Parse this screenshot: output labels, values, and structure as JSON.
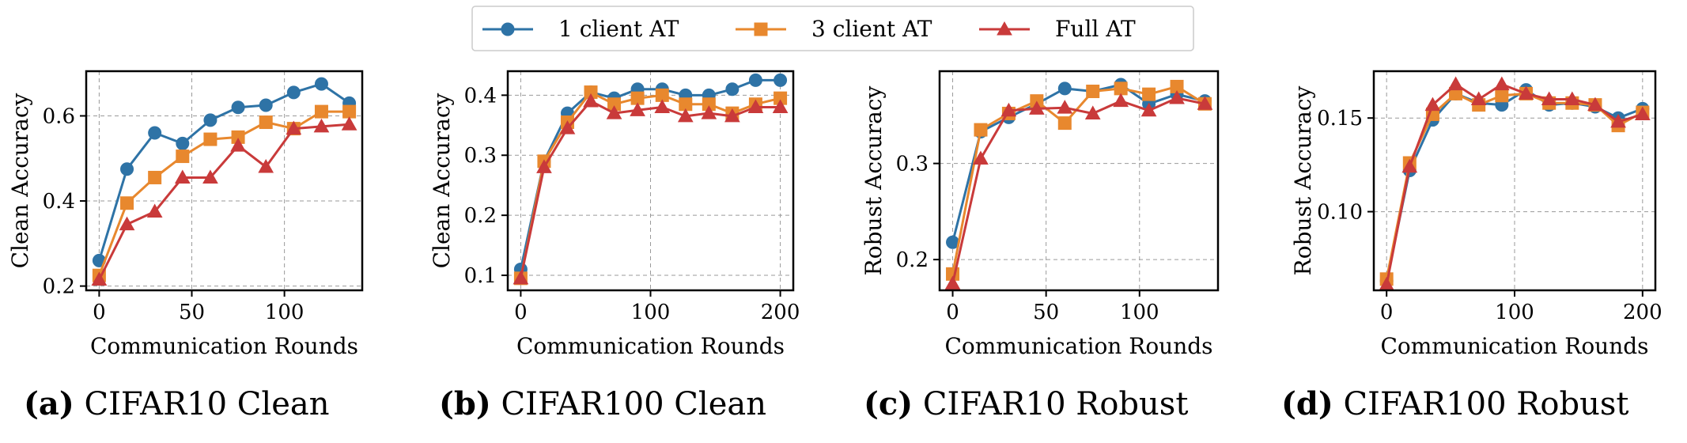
{
  "legend": [
    {
      "label": "1 client AT",
      "color": "#2E73A6",
      "marker": "circle"
    },
    {
      "label": "3 client AT",
      "color": "#E8882E",
      "marker": "square"
    },
    {
      "label": "Full AT",
      "color": "#C93A3A",
      "marker": "triangle"
    }
  ],
  "chart_data": [
    {
      "type": "line",
      "panel_letter": "(a)",
      "caption": "CIFAR10 Clean",
      "xlabel": "Communication Rounds",
      "ylabel": "Clean Accuracy",
      "xlim": [
        -7,
        142
      ],
      "ylim": [
        0.19,
        0.705
      ],
      "xticks": [
        0,
        50,
        100
      ],
      "xtick_labels": [
        "0",
        "50",
        "100"
      ],
      "yticks": [
        0.2,
        0.4,
        0.6
      ],
      "ytick_labels": [
        "0.2",
        "0.4",
        "0.6"
      ],
      "grid": true,
      "series": [
        {
          "name": "1 client AT",
          "x": [
            0,
            15,
            30,
            45,
            60,
            75,
            90,
            105,
            120,
            135
          ],
          "values": [
            0.26,
            0.475,
            0.56,
            0.535,
            0.59,
            0.62,
            0.625,
            0.655,
            0.675,
            0.63
          ]
        },
        {
          "name": "3 client AT",
          "x": [
            0,
            15,
            30,
            45,
            60,
            75,
            90,
            105,
            120,
            135
          ],
          "values": [
            0.225,
            0.395,
            0.455,
            0.505,
            0.545,
            0.55,
            0.585,
            0.57,
            0.61,
            0.61
          ]
        },
        {
          "name": "Full AT",
          "x": [
            0,
            15,
            30,
            45,
            60,
            75,
            90,
            105,
            120,
            135
          ],
          "values": [
            0.215,
            0.345,
            0.375,
            0.455,
            0.455,
            0.53,
            0.48,
            0.57,
            0.575,
            0.58
          ]
        }
      ]
    },
    {
      "type": "line",
      "panel_letter": "(b)",
      "caption": "CIFAR100 Clean",
      "xlabel": "Communication Rounds",
      "ylabel": "Clean Accuracy",
      "xlim": [
        -10,
        210
      ],
      "ylim": [
        0.075,
        0.44
      ],
      "xticks": [
        0,
        100,
        200
      ],
      "xtick_labels": [
        "0",
        "100",
        "200"
      ],
      "yticks": [
        0.1,
        0.2,
        0.3,
        0.4
      ],
      "ytick_labels": [
        "0.1",
        "0.2",
        "0.3",
        "0.4"
      ],
      "grid": true,
      "series": [
        {
          "name": "1 client AT",
          "x": [
            0,
            18,
            36,
            54,
            72,
            90,
            109,
            127,
            145,
            163,
            181,
            200
          ],
          "values": [
            0.11,
            0.29,
            0.37,
            0.405,
            0.395,
            0.41,
            0.41,
            0.4,
            0.4,
            0.41,
            0.425,
            0.425
          ]
        },
        {
          "name": "3 client AT",
          "x": [
            0,
            18,
            36,
            54,
            72,
            90,
            109,
            127,
            145,
            163,
            181,
            200
          ],
          "values": [
            0.095,
            0.29,
            0.355,
            0.405,
            0.385,
            0.395,
            0.4,
            0.385,
            0.385,
            0.37,
            0.385,
            0.395
          ]
        },
        {
          "name": "Full AT",
          "x": [
            0,
            18,
            36,
            54,
            72,
            90,
            109,
            127,
            145,
            163,
            181,
            200
          ],
          "values": [
            0.095,
            0.28,
            0.345,
            0.39,
            0.37,
            0.375,
            0.38,
            0.365,
            0.37,
            0.365,
            0.38,
            0.38
          ]
        }
      ]
    },
    {
      "type": "line",
      "panel_letter": "(c)",
      "caption": "CIFAR10 Robust",
      "xlabel": "Communication Rounds",
      "ylabel": "Robust Accuracy",
      "xlim": [
        -7,
        142
      ],
      "ylim": [
        0.168,
        0.396
      ],
      "xticks": [
        0,
        50,
        100
      ],
      "xtick_labels": [
        "0",
        "50",
        "100"
      ],
      "yticks": [
        0.2,
        0.3
      ],
      "ytick_labels": [
        "0.2",
        "0.3"
      ],
      "grid": true,
      "series": [
        {
          "name": "1 client AT",
          "x": [
            0,
            15,
            30,
            45,
            60,
            75,
            90,
            105,
            120,
            135
          ],
          "values": [
            0.218,
            0.333,
            0.348,
            0.362,
            0.378,
            0.375,
            0.382,
            0.362,
            0.372,
            0.365
          ]
        },
        {
          "name": "3 client AT",
          "x": [
            0,
            15,
            30,
            45,
            60,
            75,
            90,
            105,
            120,
            135
          ],
          "values": [
            0.185,
            0.335,
            0.352,
            0.365,
            0.342,
            0.375,
            0.378,
            0.372,
            0.38,
            0.362
          ]
        },
        {
          "name": "Full AT",
          "x": [
            0,
            15,
            30,
            45,
            60,
            75,
            90,
            105,
            120,
            135
          ],
          "values": [
            0.175,
            0.305,
            0.355,
            0.357,
            0.358,
            0.352,
            0.365,
            0.355,
            0.368,
            0.362
          ]
        }
      ]
    },
    {
      "type": "line",
      "panel_letter": "(d)",
      "caption": "CIFAR100 Robust",
      "xlabel": "Communication Rounds",
      "ylabel": "Robust Accuracy",
      "xlim": [
        -10,
        210
      ],
      "ylim": [
        0.058,
        0.175
      ],
      "xticks": [
        0,
        100,
        200
      ],
      "xtick_labels": [
        "0",
        "100",
        "200"
      ],
      "yticks": [
        0.1,
        0.15
      ],
      "ytick_labels": [
        "0.10",
        "0.15"
      ],
      "grid": true,
      "series": [
        {
          "name": "1 client AT",
          "x": [
            0,
            18,
            36,
            54,
            72,
            90,
            109,
            127,
            145,
            163,
            181,
            200
          ],
          "values": [
            0.063,
            0.122,
            0.149,
            0.163,
            0.158,
            0.157,
            0.165,
            0.157,
            0.158,
            0.156,
            0.15,
            0.155
          ]
        },
        {
          "name": "3 client AT",
          "x": [
            0,
            18,
            36,
            54,
            72,
            90,
            109,
            127,
            145,
            163,
            181,
            200
          ],
          "values": [
            0.064,
            0.126,
            0.152,
            0.163,
            0.157,
            0.162,
            0.163,
            0.158,
            0.158,
            0.157,
            0.146,
            0.153
          ]
        },
        {
          "name": "Full AT",
          "x": [
            0,
            18,
            36,
            54,
            72,
            90,
            109,
            127,
            145,
            163,
            181,
            200
          ],
          "values": [
            0.061,
            0.124,
            0.157,
            0.168,
            0.16,
            0.168,
            0.163,
            0.16,
            0.16,
            0.157,
            0.148,
            0.152
          ]
        }
      ]
    }
  ]
}
